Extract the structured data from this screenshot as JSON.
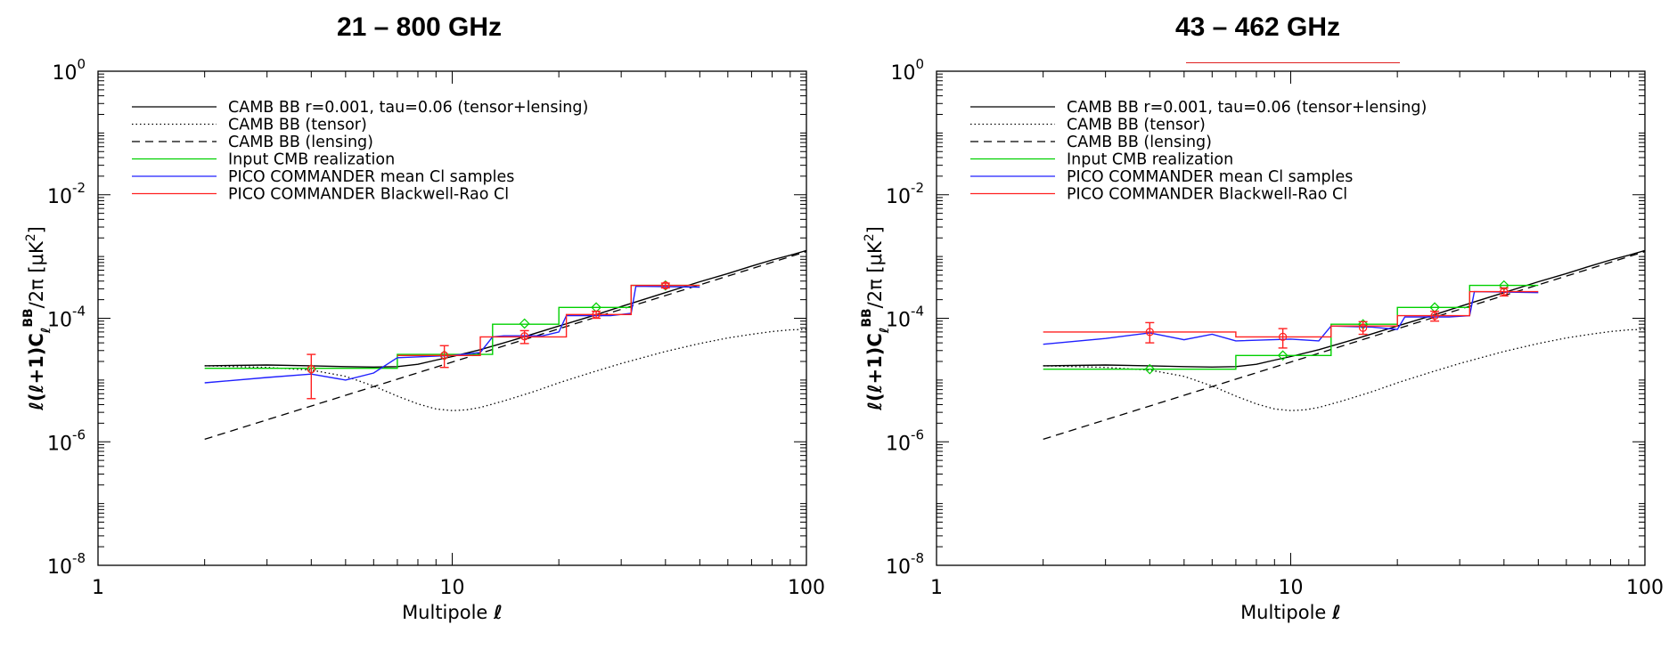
{
  "chart_data": [
    {
      "type": "line",
      "title": "21 – 800 GHz",
      "title_underlined": false,
      "xlabel": "Multipole",
      "xlabel_symbol": "ℓ",
      "ylabel": "ℓ(ℓ+1)C",
      "ylabel_sub": "ℓ",
      "ylabel_sup": "BB",
      "ylabel_tail": "/2π  [μK",
      "ylabel_tail_sup": "2",
      "ylabel_close": "]",
      "x_scale": "log",
      "y_scale": "log",
      "xlim": [
        1,
        100
      ],
      "ylim": [
        1e-08,
        1
      ],
      "x_ticks": [
        {
          "v": 1,
          "label": "1"
        },
        {
          "v": 10,
          "label": "10"
        },
        {
          "v": 100,
          "label": "100"
        }
      ],
      "y_ticks": [
        {
          "v": 1,
          "base": "10",
          "exp": "0"
        },
        {
          "v": 0.01,
          "base": "10",
          "exp": "-2"
        },
        {
          "v": 0.0001,
          "base": "10",
          "exp": "-4"
        },
        {
          "v": 1e-06,
          "base": "10",
          "exp": "-6"
        },
        {
          "v": 1e-08,
          "base": "10",
          "exp": "-8"
        }
      ],
      "grid": false,
      "legend_position": "top-left",
      "series": [
        {
          "name": "CAMB BB r=0.001, tau=0.06 (tensor+lensing)",
          "style": "solid",
          "color": "#000000",
          "points": [
            [
              2,
              1.7e-05
            ],
            [
              3,
              1.75e-05
            ],
            [
              4,
              1.7e-05
            ],
            [
              5,
              1.65e-05
            ],
            [
              6,
              1.62e-05
            ],
            [
              7,
              1.65e-05
            ],
            [
              8,
              1.8e-05
            ],
            [
              9,
              2.1e-05
            ],
            [
              10,
              2.4e-05
            ],
            [
              12,
              3.1e-05
            ],
            [
              15,
              4.5e-05
            ],
            [
              20,
              7.5e-05
            ],
            [
              25,
              0.00011
            ],
            [
              30,
              0.000155
            ],
            [
              40,
              0.00026
            ],
            [
              50,
              0.00039
            ],
            [
              60,
              0.00053
            ],
            [
              70,
              0.0007
            ],
            [
              80,
              0.00088
            ],
            [
              90,
              0.00105
            ],
            [
              100,
              0.00125
            ]
          ]
        },
        {
          "name": "CAMB BB (tensor)",
          "style": "dotted",
          "color": "#000000",
          "points": [
            [
              2,
              1.7e-05
            ],
            [
              3,
              1.6e-05
            ],
            [
              4,
              1.45e-05
            ],
            [
              5,
              1.15e-05
            ],
            [
              6,
              8e-06
            ],
            [
              7,
              5.5e-06
            ],
            [
              8,
              4.1e-06
            ],
            [
              9,
              3.4e-06
            ],
            [
              10,
              3.2e-06
            ],
            [
              11,
              3.3e-06
            ],
            [
              12,
              3.6e-06
            ],
            [
              14,
              4.6e-06
            ],
            [
              17,
              6.5e-06
            ],
            [
              20,
              9e-06
            ],
            [
              25,
              1.35e-05
            ],
            [
              30,
              1.85e-05
            ],
            [
              40,
              2.9e-05
            ],
            [
              50,
              3.9e-05
            ],
            [
              60,
              4.8e-05
            ],
            [
              70,
              5.5e-05
            ],
            [
              80,
              6.1e-05
            ],
            [
              90,
              6.5e-05
            ],
            [
              100,
              6.6e-05
            ]
          ]
        },
        {
          "name": "CAMB BB (lensing)",
          "style": "dashed",
          "color": "#000000",
          "points": [
            [
              2,
              1.1e-06
            ],
            [
              100,
              0.0012
            ]
          ]
        },
        {
          "name": "Input CMB realization",
          "style": "solid",
          "color": "#00d000",
          "points": [
            [
              2,
              1.55e-05
            ],
            [
              7,
              1.55e-05
            ],
            [
              7,
              2.6e-05
            ],
            [
              13,
              2.6e-05
            ],
            [
              13,
              8e-05
            ],
            [
              20,
              8e-05
            ],
            [
              20,
              0.00015
            ],
            [
              32,
              0.00015
            ],
            [
              32,
              0.00034
            ],
            [
              50,
              0.00034
            ]
          ],
          "markers": [
            [
              4,
              1.5e-05
            ],
            [
              9.5,
              2.5e-05
            ],
            [
              16,
              8.2e-05
            ],
            [
              25.5,
              0.00015
            ],
            [
              40,
              0.00034
            ]
          ]
        },
        {
          "name": "PICO COMMANDER mean Cl samples",
          "style": "solid",
          "color": "#2020ff",
          "points": [
            [
              2,
              9e-06
            ],
            [
              3,
              1.1e-05
            ],
            [
              4,
              1.25e-05
            ],
            [
              5,
              1e-05
            ],
            [
              6,
              1.3e-05
            ],
            [
              7,
              2.3e-05
            ],
            [
              10,
              2.5e-05
            ],
            [
              12,
              2.8e-05
            ],
            [
              13,
              5e-05
            ],
            [
              14,
              5.2e-05
            ],
            [
              18,
              5.2e-05
            ],
            [
              20,
              6e-05
            ],
            [
              21,
              0.00011
            ],
            [
              28,
              0.00011
            ],
            [
              32,
              0.00012
            ],
            [
              33,
              0.00033
            ],
            [
              50,
              0.00032
            ]
          ]
        },
        {
          "name": "PICO COMMANDER Blackwell-Rao Cl",
          "style": "solid",
          "color": "#ff2020",
          "points": [
            [
              7,
              2.5e-05
            ],
            [
              12,
              2.5e-05
            ],
            [
              12,
              5e-05
            ],
            [
              21,
              5e-05
            ],
            [
              21,
              0.000115
            ],
            [
              32,
              0.000115
            ],
            [
              32,
              0.00034
            ],
            [
              50,
              0.00034
            ]
          ],
          "errorbars": [
            {
              "x": 4,
              "y": 1.5e-05,
              "lo": 5e-06,
              "hi": 2.6e-05
            },
            {
              "x": 9.5,
              "y": 2.5e-05,
              "lo": 1.6e-05,
              "hi": 3.6e-05
            },
            {
              "x": 16,
              "y": 5.1e-05,
              "lo": 3.9e-05,
              "hi": 6.3e-05
            },
            {
              "x": 25.5,
              "y": 0.000115,
              "lo": 0.0001,
              "hi": 0.00013
            },
            {
              "x": 40,
              "y": 0.00034,
              "lo": 0.00031,
              "hi": 0.00037
            }
          ]
        }
      ]
    },
    {
      "type": "line",
      "title": "43 – 462 GHz",
      "title_underlined": true,
      "xlabel": "Multipole",
      "xlabel_symbol": "ℓ",
      "ylabel": "ℓ(ℓ+1)C",
      "ylabel_sub": "ℓ",
      "ylabel_sup": "BB",
      "ylabel_tail": "/2π  [μK",
      "ylabel_tail_sup": "2",
      "ylabel_close": "]",
      "x_scale": "log",
      "y_scale": "log",
      "xlim": [
        1,
        100
      ],
      "ylim": [
        1e-08,
        1
      ],
      "x_ticks": [
        {
          "v": 1,
          "label": "1"
        },
        {
          "v": 10,
          "label": "10"
        },
        {
          "v": 100,
          "label": "100"
        }
      ],
      "y_ticks": [
        {
          "v": 1,
          "base": "10",
          "exp": "0"
        },
        {
          "v": 0.01,
          "base": "10",
          "exp": "-2"
        },
        {
          "v": 0.0001,
          "base": "10",
          "exp": "-4"
        },
        {
          "v": 1e-06,
          "base": "10",
          "exp": "-6"
        },
        {
          "v": 1e-08,
          "base": "10",
          "exp": "-8"
        }
      ],
      "grid": false,
      "legend_position": "top-left",
      "series": [
        {
          "name": "CAMB BB r=0.001, tau=0.06 (tensor+lensing)",
          "style": "solid",
          "color": "#000000",
          "points": [
            [
              2,
              1.7e-05
            ],
            [
              3,
              1.75e-05
            ],
            [
              4,
              1.7e-05
            ],
            [
              5,
              1.65e-05
            ],
            [
              6,
              1.62e-05
            ],
            [
              7,
              1.65e-05
            ],
            [
              8,
              1.8e-05
            ],
            [
              9,
              2.1e-05
            ],
            [
              10,
              2.4e-05
            ],
            [
              12,
              3.1e-05
            ],
            [
              15,
              4.5e-05
            ],
            [
              20,
              7.5e-05
            ],
            [
              25,
              0.00011
            ],
            [
              30,
              0.000155
            ],
            [
              40,
              0.00026
            ],
            [
              50,
              0.00039
            ],
            [
              60,
              0.00053
            ],
            [
              70,
              0.0007
            ],
            [
              80,
              0.00088
            ],
            [
              90,
              0.00105
            ],
            [
              100,
              0.00125
            ]
          ]
        },
        {
          "name": "CAMB BB (tensor)",
          "style": "dotted",
          "color": "#000000",
          "points": [
            [
              2,
              1.7e-05
            ],
            [
              3,
              1.6e-05
            ],
            [
              4,
              1.45e-05
            ],
            [
              5,
              1.15e-05
            ],
            [
              6,
              8e-06
            ],
            [
              7,
              5.5e-06
            ],
            [
              8,
              4.1e-06
            ],
            [
              9,
              3.4e-06
            ],
            [
              10,
              3.2e-06
            ],
            [
              11,
              3.3e-06
            ],
            [
              12,
              3.6e-06
            ],
            [
              14,
              4.6e-06
            ],
            [
              17,
              6.5e-06
            ],
            [
              20,
              9e-06
            ],
            [
              25,
              1.35e-05
            ],
            [
              30,
              1.85e-05
            ],
            [
              40,
              2.9e-05
            ],
            [
              50,
              3.9e-05
            ],
            [
              60,
              4.8e-05
            ],
            [
              70,
              5.5e-05
            ],
            [
              80,
              6.1e-05
            ],
            [
              90,
              6.5e-05
            ],
            [
              100,
              6.6e-05
            ]
          ]
        },
        {
          "name": "CAMB BB (lensing)",
          "style": "dashed",
          "color": "#000000",
          "points": [
            [
              2,
              1.1e-06
            ],
            [
              100,
              0.0012
            ]
          ]
        },
        {
          "name": "Input CMB realization",
          "style": "solid",
          "color": "#00d000",
          "points": [
            [
              2,
              1.5e-05
            ],
            [
              7,
              1.5e-05
            ],
            [
              7,
              2.5e-05
            ],
            [
              13,
              2.5e-05
            ],
            [
              13,
              8e-05
            ],
            [
              20,
              8e-05
            ],
            [
              20,
              0.00015
            ],
            [
              32,
              0.00015
            ],
            [
              32,
              0.00034
            ],
            [
              50,
              0.00034
            ]
          ],
          "markers": [
            [
              4,
              1.5e-05
            ],
            [
              9.5,
              2.5e-05
            ],
            [
              16,
              8e-05
            ],
            [
              25.5,
              0.00015
            ],
            [
              40,
              0.00034
            ]
          ]
        },
        {
          "name": "PICO COMMANDER mean Cl samples",
          "style": "solid",
          "color": "#2020ff",
          "points": [
            [
              2,
              3.8e-05
            ],
            [
              3,
              4.7e-05
            ],
            [
              4,
              5.8e-05
            ],
            [
              5,
              4.5e-05
            ],
            [
              6,
              5.5e-05
            ],
            [
              7,
              4.3e-05
            ],
            [
              10,
              4.6e-05
            ],
            [
              12,
              4.3e-05
            ],
            [
              13,
              7.5e-05
            ],
            [
              17,
              7.2e-05
            ],
            [
              20,
              6.6e-05
            ],
            [
              21,
              0.000105
            ],
            [
              28,
              0.000105
            ],
            [
              32,
              0.00011
            ],
            [
              33,
              0.00027
            ],
            [
              50,
              0.00026
            ]
          ]
        },
        {
          "name": "PICO COMMANDER Blackwell-Rao Cl",
          "style": "solid",
          "color": "#ff2020",
          "points": [
            [
              2,
              6e-05
            ],
            [
              7,
              6e-05
            ],
            [
              7,
              5e-05
            ],
            [
              13,
              5e-05
            ],
            [
              13,
              7.5e-05
            ],
            [
              20,
              7.5e-05
            ],
            [
              20,
              0.00011
            ],
            [
              32,
              0.00011
            ],
            [
              32,
              0.00027
            ],
            [
              50,
              0.00027
            ]
          ],
          "errorbars": [
            {
              "x": 4,
              "y": 6e-05,
              "lo": 4e-05,
              "hi": 8.5e-05
            },
            {
              "x": 9.5,
              "y": 5e-05,
              "lo": 3.3e-05,
              "hi": 6.8e-05
            },
            {
              "x": 16,
              "y": 7e-05,
              "lo": 5.5e-05,
              "hi": 8.8e-05
            },
            {
              "x": 25.5,
              "y": 0.00011,
              "lo": 9e-05,
              "hi": 0.00013
            },
            {
              "x": 40,
              "y": 0.00027,
              "lo": 0.00023,
              "hi": 0.00031
            }
          ]
        }
      ]
    }
  ]
}
